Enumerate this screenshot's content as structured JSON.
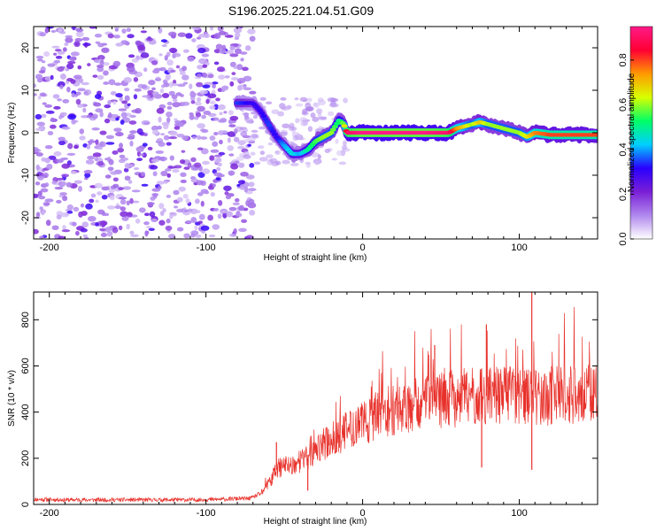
{
  "page": {
    "title": "S196.2025.221.04.51.G09"
  },
  "chart_data": [
    {
      "type": "heatmap",
      "id": "spectrogram",
      "title": "S196.2025.221.04.51.G09",
      "xlabel": "Height of straight line (km)",
      "ylabel": "Frequency (Hz)",
      "xlim": [
        -210,
        150
      ],
      "ylim": [
        -25,
        25
      ],
      "xticks": [
        -200,
        -100,
        0,
        100
      ],
      "xtick_labels": [
        "-200",
        "-100",
        "0",
        "100"
      ],
      "yticks": [
        -20,
        -10,
        0,
        10,
        20
      ],
      "ytick_labels": [
        "-20",
        "-10",
        "0",
        "10",
        "20"
      ],
      "colorbar": {
        "label": "Normalized spectral amplitude",
        "range": [
          0.0,
          0.95
        ],
        "ticks": [
          0.0,
          0.2,
          0.4,
          0.6,
          0.8
        ],
        "tick_labels": [
          "0.0",
          "0.2",
          "0.4",
          "0.6",
          "0.8"
        ],
        "colors": [
          "#ffffff",
          "#b088ee",
          "#7a1fd6",
          "#2a00ff",
          "#00cfff",
          "#00ff66",
          "#d8ff00",
          "#ff9900",
          "#ff0033",
          "#ff1a88"
        ]
      },
      "noise_region_x": [
        -210,
        -75
      ],
      "ridge": {
        "x": [
          -80,
          -70,
          -65,
          -60,
          -55,
          -50,
          -45,
          -40,
          -35,
          -30,
          -25,
          -20,
          -15,
          -12,
          -10,
          0,
          20,
          40,
          55,
          60,
          70,
          75,
          80,
          90,
          100,
          105,
          110,
          120,
          140,
          150
        ],
        "freq": [
          7,
          7,
          5,
          2,
          -1,
          -3,
          -5,
          -5,
          -4,
          -2,
          -1,
          0,
          3,
          2,
          0,
          0,
          0,
          0,
          0,
          1,
          2,
          2.5,
          2,
          1,
          0,
          -1,
          0,
          -0.5,
          -0.5,
          -0.5
        ],
        "amplitude": [
          0.35,
          0.3,
          0.3,
          0.35,
          0.3,
          0.4,
          0.45,
          0.4,
          0.5,
          0.55,
          0.6,
          0.6,
          0.5,
          0.6,
          0.9,
          0.95,
          0.95,
          0.95,
          0.92,
          0.75,
          0.6,
          0.7,
          0.6,
          0.6,
          0.6,
          0.65,
          0.75,
          0.8,
          0.8,
          0.8
        ]
      }
    },
    {
      "type": "line",
      "id": "snr",
      "xlabel": "Height of straight line (km)",
      "ylabel": "SNR (10 * v/v)",
      "xlim": [
        -210,
        150
      ],
      "ylim": [
        0,
        920
      ],
      "xticks": [
        -200,
        -100,
        0,
        100
      ],
      "xtick_labels": [
        "-200",
        "-100",
        "0",
        "100"
      ],
      "yticks": [
        0,
        200,
        400,
        600,
        800
      ],
      "ytick_labels": [
        "0",
        "200",
        "400",
        "600",
        "800"
      ],
      "color": "#e8312b",
      "series": [
        {
          "name": "SNR",
          "x": [
            -210,
            -190,
            -170,
            -150,
            -130,
            -110,
            -90,
            -80,
            -75,
            -70,
            -66,
            -62,
            -58,
            -55,
            -50,
            -45,
            -40,
            -35,
            -30,
            -25,
            -20,
            -15,
            -10,
            -5,
            0,
            5,
            10,
            20,
            30,
            40,
            50,
            60,
            70,
            80,
            90,
            100,
            110,
            120,
            130,
            140,
            150
          ],
          "y": [
            22,
            20,
            20,
            20,
            20,
            20,
            22,
            25,
            25,
            28,
            45,
            70,
            110,
            150,
            170,
            170,
            190,
            200,
            230,
            260,
            280,
            300,
            320,
            340,
            350,
            370,
            390,
            410,
            430,
            440,
            450,
            460,
            470,
            470,
            470,
            470,
            470,
            470,
            470,
            470,
            470
          ]
        }
      ],
      "annotations": [
        {
          "x": -55,
          "y": 270
        },
        {
          "x": -35,
          "y": 60
        },
        {
          "x": 76,
          "y": 160
        },
        {
          "x": 108,
          "y": 150
        },
        {
          "x": 108,
          "y": 920
        },
        {
          "x": 79,
          "y": 780
        },
        {
          "x": 46,
          "y": 690
        }
      ]
    }
  ]
}
